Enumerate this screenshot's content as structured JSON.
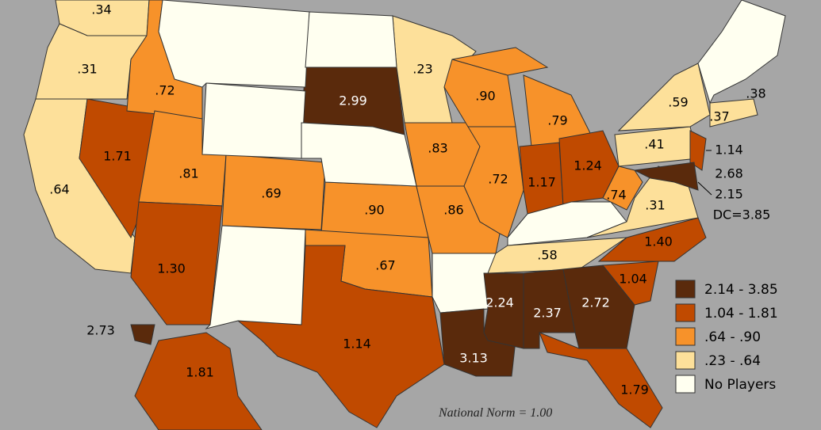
{
  "states": [
    {
      "label": ".34",
      "color": "#fde09a"
    },
    {
      "label": ".31",
      "color": "#fde09a"
    },
    {
      "label": ".64",
      "color": "#fde09a"
    },
    {
      "label": "1.71",
      "color": "#c04a00"
    },
    {
      "label": ".72",
      "color": "#f7922a"
    },
    {
      "label": ".81",
      "color": "#f7922a"
    },
    {
      "label": ".69",
      "color": "#f7922a"
    },
    {
      "label": "1.30",
      "color": "#c04a00"
    },
    {
      "label": "2.99",
      "color": "#5a2a0c"
    },
    {
      "label": ".90",
      "color": "#f7922a"
    },
    {
      "label": ".67",
      "color": "#f7922a"
    },
    {
      "label": "1.14",
      "color": "#c04a00"
    },
    {
      "label": ".23",
      "color": "#fde09a"
    },
    {
      "label": ".83",
      "color": "#f7922a"
    },
    {
      "label": ".86",
      "color": "#f7922a"
    },
    {
      "label": "3.13",
      "color": "#5a2a0c"
    },
    {
      "label": ".90",
      "color": "#f7922a"
    },
    {
      "label": ".72",
      "color": "#f7922a"
    },
    {
      "label": ".79",
      "color": "#f7922a"
    },
    {
      "label": "1.17",
      "color": "#c04a00"
    },
    {
      "label": "1.24",
      "color": "#c04a00"
    },
    {
      "label": ".58",
      "color": "#fde09a"
    },
    {
      "label": "2.24",
      "color": "#5a2a0c"
    },
    {
      "label": "2.37",
      "color": "#5a2a0c"
    },
    {
      "label": "2.72",
      "color": "#5a2a0c"
    },
    {
      "label": "1.79",
      "color": "#c04a00"
    },
    {
      "label": "1.04",
      "color": "#c04a00"
    },
    {
      "label": "1.40",
      "color": "#c04a00"
    },
    {
      "label": ".31",
      "color": "#fde09a"
    },
    {
      "label": ".74",
      "color": "#f7922a"
    },
    {
      "label": ".41",
      "color": "#fde09a"
    },
    {
      "label": ".59",
      "color": "#fde09a"
    },
    {
      "label": "1.14",
      "color": "#c04a00"
    },
    {
      "label": "2.68",
      "color": "#5a2a0c"
    },
    {
      "label": "2.15",
      "color": "#5a2a0c"
    },
    {
      "label": ".37",
      "color": "#fde09a"
    },
    {
      "label": ".38",
      "color": "#fde09a"
    },
    {
      "label": "1.81",
      "color": "#c04a00"
    },
    {
      "label": "2.73",
      "color": "#5a2a0c"
    }
  ],
  "dc": "DC=3.85",
  "note": "National Norm = 1.00",
  "legend": [
    {
      "label": "2.14 - 3.85",
      "color": "#5a2a0c"
    },
    {
      "label": "1.04 - 1.81",
      "color": "#c04a00"
    },
    {
      "label": ".64 - .90",
      "color": "#f7922a"
    },
    {
      "label": ".23 - .64",
      "color": "#fde09a"
    },
    {
      "label": "No Players",
      "color": "#fffff0"
    }
  ]
}
